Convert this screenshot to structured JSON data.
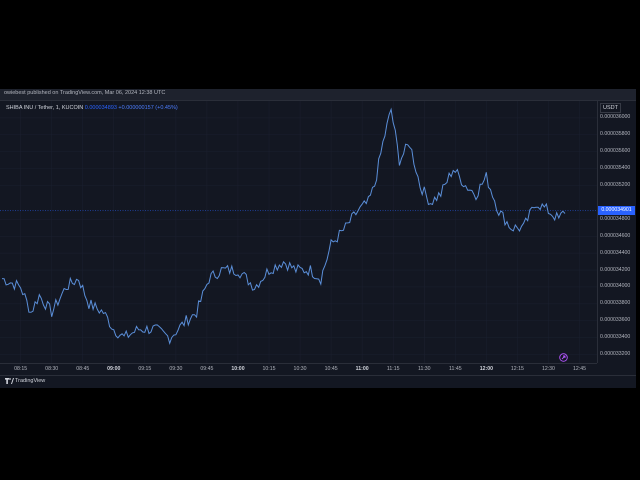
{
  "publish_info": "owiebest published on TradingView.com, Mar 06, 2024 12:38 UTC",
  "symbol": {
    "name": "SHIBA INU / Tether, 1, KUCOIN",
    "last_price": "0.000034893",
    "change": "+0.000000157 (+0.45%)"
  },
  "price_axis": {
    "currency": "USDT",
    "last_price_tag": "0.000034901",
    "ticks": [
      "0.000036000",
      "0.000035800",
      "0.000035600",
      "0.000035400",
      "0.000035200",
      "0.000034800",
      "0.000034600",
      "0.000034400",
      "0.000034200",
      "0.000034000",
      "0.000033800",
      "0.000033600",
      "0.000033400",
      "0.000033200"
    ]
  },
  "time_axis": {
    "ticks": [
      "08:15",
      "08:30",
      "08:45",
      "09:00",
      "09:15",
      "09:30",
      "09:45",
      "10:00",
      "10:15",
      "10:30",
      "10:45",
      "11:00",
      "11:15",
      "11:30",
      "11:45",
      "12:00",
      "12:15",
      "12:30",
      "12:45"
    ],
    "bold": [
      "09:00",
      "10:00",
      "11:00",
      "12:00"
    ]
  },
  "footer": {
    "brand": "TradingView"
  },
  "colors": {
    "line": "#5b8fd9",
    "background": "#131722",
    "accent": "#2962ff"
  },
  "icons": {
    "logo": "tradingview-logo-icon",
    "goto": "goto-realtime-icon"
  },
  "chart_data": {
    "type": "line",
    "title": "SHIBA INU / Tether, 1, KUCOIN",
    "xlabel": "",
    "ylabel": "",
    "ylim": [
      3.31e-05,
      3.62e-05
    ],
    "x_start": "08:06",
    "x_end": "12:38",
    "x_step_min": 1,
    "keypoints": [
      [
        "08:06",
        3.41e-05
      ],
      [
        "08:15",
        3.4e-05
      ],
      [
        "08:20",
        3.37e-05
      ],
      [
        "08:24",
        3.39e-05
      ],
      [
        "08:30",
        3.37e-05
      ],
      [
        "08:37",
        3.4e-05
      ],
      [
        "08:43",
        3.41e-05
      ],
      [
        "08:48",
        3.38e-05
      ],
      [
        "08:55",
        3.37e-05
      ],
      [
        "09:00",
        3.35e-05
      ],
      [
        "09:05",
        3.34e-05
      ],
      [
        "09:12",
        3.35e-05
      ],
      [
        "09:20",
        3.35e-05
      ],
      [
        "09:27",
        3.34e-05
      ],
      [
        "09:35",
        3.36e-05
      ],
      [
        "09:40",
        3.37e-05
      ],
      [
        "09:46",
        3.41e-05
      ],
      [
        "09:52",
        3.42e-05
      ],
      [
        "10:00",
        3.42e-05
      ],
      [
        "10:08",
        3.4e-05
      ],
      [
        "10:15",
        3.42e-05
      ],
      [
        "10:22",
        3.43e-05
      ],
      [
        "10:28",
        3.42e-05
      ],
      [
        "10:35",
        3.42e-05
      ],
      [
        "10:40",
        3.41e-05
      ],
      [
        "10:45",
        3.45e-05
      ],
      [
        "10:52",
        3.47e-05
      ],
      [
        "10:58",
        3.49e-05
      ],
      [
        "11:03",
        3.5e-05
      ],
      [
        "11:06",
        3.52e-05
      ],
      [
        "11:10",
        3.57e-05
      ],
      [
        "11:14",
        3.61e-05
      ],
      [
        "11:18",
        3.55e-05
      ],
      [
        "11:23",
        3.57e-05
      ],
      [
        "11:28",
        3.52e-05
      ],
      [
        "11:33",
        3.5e-05
      ],
      [
        "11:38",
        3.51e-05
      ],
      [
        "11:44",
        3.54e-05
      ],
      [
        "11:50",
        3.52e-05
      ],
      [
        "11:55",
        3.51e-05
      ],
      [
        "12:00",
        3.53e-05
      ],
      [
        "12:06",
        3.49e-05
      ],
      [
        "12:12",
        3.47e-05
      ],
      [
        "12:18",
        3.47e-05
      ],
      [
        "12:24",
        3.5e-05
      ],
      [
        "12:30",
        3.49e-05
      ],
      [
        "12:35",
        3.48e-05
      ],
      [
        "12:38",
        3.49e-05
      ]
    ]
  }
}
